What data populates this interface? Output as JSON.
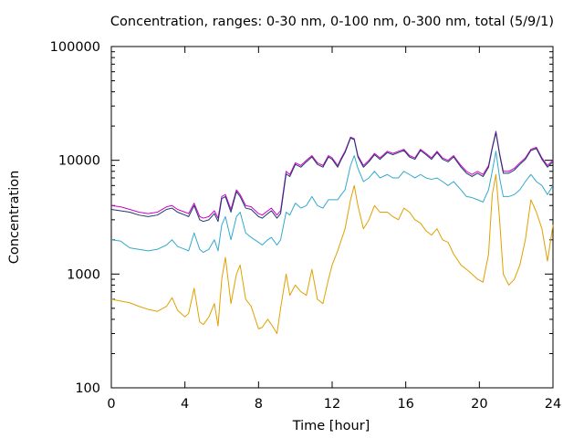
{
  "chart_data": {
    "type": "line",
    "title": "Concentration, ranges: 0-30 nm, 0-100 nm, 0-300 nm, total (5/9/1)",
    "xlabel": "Time [hour]",
    "ylabel": "Concentration",
    "xlim": [
      0,
      24
    ],
    "ylim": [
      100,
      100000
    ],
    "yscale": "log",
    "grid": false,
    "legend": "none",
    "x_ticks": [
      0,
      4,
      8,
      12,
      16,
      20,
      24
    ],
    "x_tick_labels": [
      "0",
      "4",
      "8",
      "12",
      "16",
      "20",
      "24"
    ],
    "y_ticks": [
      100,
      1000,
      10000,
      100000
    ],
    "y_tick_labels": [
      "100",
      "1000",
      "10000",
      "100000"
    ],
    "series": [
      {
        "color": "#e0a000",
        "x": [
          0,
          0.5,
          1,
          1.5,
          2,
          2.5,
          3,
          3.3,
          3.6,
          4,
          4.2,
          4.5,
          4.8,
          5,
          5.3,
          5.6,
          5.8,
          6.0,
          6.2,
          6.5,
          6.8,
          7.0,
          7.3,
          7.6,
          8,
          8.2,
          8.5,
          8.7,
          9.0,
          9.2,
          9.5,
          9.7,
          10.0,
          10.3,
          10.6,
          10.9,
          11.2,
          11.5,
          11.8,
          12.0,
          12.3,
          12.5,
          12.7,
          13.0,
          13.2,
          13.4,
          13.7,
          14.0,
          14.3,
          14.6,
          15.0,
          15.3,
          15.6,
          15.9,
          16.2,
          16.5,
          16.8,
          17.1,
          17.4,
          17.7,
          18.0,
          18.3,
          18.6,
          19.0,
          19.3,
          19.6,
          19.9,
          20.2,
          20.5,
          20.7,
          20.9,
          21.1,
          21.3,
          21.6,
          21.9,
          22.2,
          22.5,
          22.8,
          23.1,
          23.4,
          23.7,
          24
        ],
        "y": [
          600,
          580,
          560,
          520,
          490,
          470,
          520,
          620,
          480,
          420,
          450,
          750,
          380,
          360,
          420,
          550,
          350,
          900,
          1400,
          550,
          1000,
          1200,
          600,
          520,
          330,
          340,
          400,
          360,
          300,
          500,
          1000,
          650,
          800,
          700,
          650,
          1100,
          600,
          550,
          900,
          1200,
          1600,
          2000,
          2500,
          4500,
          6000,
          4000,
          2500,
          3000,
          4000,
          3500,
          3500,
          3200,
          3000,
          3800,
          3500,
          3000,
          2800,
          2400,
          2200,
          2500,
          2000,
          1900,
          1500,
          1200,
          1100,
          1000,
          900,
          850,
          1500,
          5000,
          7500,
          3000,
          1000,
          800,
          900,
          1200,
          2000,
          4500,
          3500,
          2500,
          1300,
          2700
        ]
      },
      {
        "color": "#33aacc",
        "x": [
          0,
          0.5,
          1,
          1.5,
          2,
          2.5,
          3,
          3.3,
          3.6,
          4,
          4.2,
          4.5,
          4.8,
          5,
          5.3,
          5.6,
          5.8,
          6.0,
          6.2,
          6.5,
          6.8,
          7.0,
          7.3,
          7.6,
          8,
          8.2,
          8.5,
          8.7,
          9.0,
          9.2,
          9.5,
          9.7,
          10.0,
          10.3,
          10.6,
          10.9,
          11.2,
          11.5,
          11.8,
          12.0,
          12.3,
          12.5,
          12.7,
          13.0,
          13.2,
          13.4,
          13.7,
          14.0,
          14.3,
          14.6,
          15.0,
          15.3,
          15.6,
          15.9,
          16.2,
          16.5,
          16.8,
          17.1,
          17.4,
          17.7,
          18.0,
          18.3,
          18.6,
          19.0,
          19.3,
          19.6,
          19.9,
          20.2,
          20.5,
          20.7,
          20.9,
          21.1,
          21.3,
          21.6,
          21.9,
          22.2,
          22.5,
          22.8,
          23.1,
          23.4,
          23.7,
          24
        ],
        "y": [
          2000,
          1950,
          1700,
          1650,
          1600,
          1650,
          1800,
          2000,
          1750,
          1650,
          1600,
          2300,
          1650,
          1550,
          1650,
          2000,
          1600,
          2700,
          3200,
          2000,
          3200,
          3500,
          2300,
          2100,
          1900,
          1800,
          2000,
          2100,
          1800,
          2000,
          3500,
          3300,
          4200,
          3800,
          4000,
          4800,
          4000,
          3800,
          4500,
          4500,
          4500,
          5000,
          5500,
          9000,
          11000,
          8500,
          6500,
          7000,
          8000,
          7000,
          7500,
          7000,
          7000,
          8000,
          7500,
          7000,
          7500,
          7000,
          6800,
          7000,
          6500,
          6000,
          6500,
          5500,
          4800,
          4700,
          4500,
          4300,
          5500,
          8000,
          12000,
          7000,
          4800,
          4800,
          5000,
          5500,
          6500,
          7500,
          6500,
          6000,
          5000,
          6000
        ]
      },
      {
        "color": "#cc00cc",
        "x": [
          0,
          0.5,
          1,
          1.5,
          2,
          2.5,
          3,
          3.3,
          3.6,
          4,
          4.2,
          4.5,
          4.8,
          5,
          5.3,
          5.6,
          5.8,
          6.0,
          6.2,
          6.5,
          6.8,
          7.0,
          7.3,
          7.6,
          8,
          8.2,
          8.5,
          8.7,
          9.0,
          9.2,
          9.5,
          9.7,
          10.0,
          10.3,
          10.6,
          10.9,
          11.2,
          11.5,
          11.8,
          12.0,
          12.3,
          12.5,
          12.7,
          13.0,
          13.2,
          13.4,
          13.7,
          14.0,
          14.3,
          14.6,
          15.0,
          15.3,
          15.6,
          15.9,
          16.2,
          16.5,
          16.8,
          17.1,
          17.4,
          17.7,
          18.0,
          18.3,
          18.6,
          19.0,
          19.3,
          19.6,
          19.9,
          20.2,
          20.5,
          20.7,
          20.9,
          21.1,
          21.3,
          21.6,
          21.9,
          22.2,
          22.5,
          22.8,
          23.1,
          23.4,
          23.7,
          24
        ],
        "y": [
          4000,
          3900,
          3700,
          3500,
          3400,
          3500,
          3900,
          4000,
          3700,
          3500,
          3400,
          4200,
          3200,
          3100,
          3200,
          3600,
          3100,
          4800,
          5000,
          3700,
          5500,
          5000,
          4000,
          3900,
          3400,
          3300,
          3600,
          3800,
          3300,
          3600,
          8000,
          7500,
          9500,
          9000,
          10000,
          11000,
          9500,
          9000,
          11000,
          10500,
          9000,
          10500,
          12000,
          16000,
          15500,
          11000,
          9000,
          10000,
          11500,
          10500,
          12000,
          11500,
          12000,
          12500,
          11000,
          10500,
          12500,
          11500,
          10500,
          12000,
          10500,
          10000,
          11000,
          9000,
          8000,
          7500,
          8000,
          7500,
          9000,
          13000,
          18000,
          11500,
          8000,
          8000,
          8500,
          9500,
          10500,
          12500,
          13000,
          10500,
          9000,
          10000
        ]
      },
      {
        "color": "#1a3a6a",
        "x": [
          0,
          0.5,
          1,
          1.5,
          2,
          2.5,
          3,
          3.3,
          3.6,
          4,
          4.2,
          4.5,
          4.8,
          5,
          5.3,
          5.6,
          5.8,
          6.0,
          6.2,
          6.5,
          6.8,
          7.0,
          7.3,
          7.6,
          8,
          8.2,
          8.5,
          8.7,
          9.0,
          9.2,
          9.5,
          9.7,
          10.0,
          10.3,
          10.6,
          10.9,
          11.2,
          11.5,
          11.8,
          12.0,
          12.3,
          12.5,
          12.7,
          13.0,
          13.2,
          13.4,
          13.7,
          14.0,
          14.3,
          14.6,
          15.0,
          15.3,
          15.6,
          15.9,
          16.2,
          16.5,
          16.8,
          17.1,
          17.4,
          17.7,
          18.0,
          18.3,
          18.6,
          19.0,
          19.3,
          19.6,
          19.9,
          20.2,
          20.5,
          20.7,
          20.9,
          21.1,
          21.3,
          21.6,
          21.9,
          22.2,
          22.5,
          22.8,
          23.1,
          23.4,
          23.7,
          24
        ],
        "y": [
          3700,
          3600,
          3500,
          3300,
          3200,
          3300,
          3700,
          3800,
          3500,
          3300,
          3200,
          4000,
          3000,
          2900,
          3000,
          3400,
          2900,
          4600,
          4800,
          3500,
          5300,
          4800,
          3800,
          3700,
          3200,
          3100,
          3400,
          3600,
          3100,
          3400,
          7600,
          7200,
          9200,
          8700,
          9700,
          10700,
          9200,
          8700,
          10700,
          10200,
          8700,
          10200,
          11700,
          15700,
          15200,
          10700,
          8700,
          9700,
          11200,
          10200,
          11700,
          11200,
          11700,
          12200,
          10700,
          10200,
          12200,
          11200,
          10200,
          11700,
          10200,
          9700,
          10700,
          8700,
          7700,
          7200,
          7700,
          7200,
          8700,
          12700,
          17500,
          11200,
          7700,
          7700,
          8200,
          9200,
          10200,
          12200,
          12700,
          10200,
          8700,
          9700
        ]
      }
    ]
  }
}
